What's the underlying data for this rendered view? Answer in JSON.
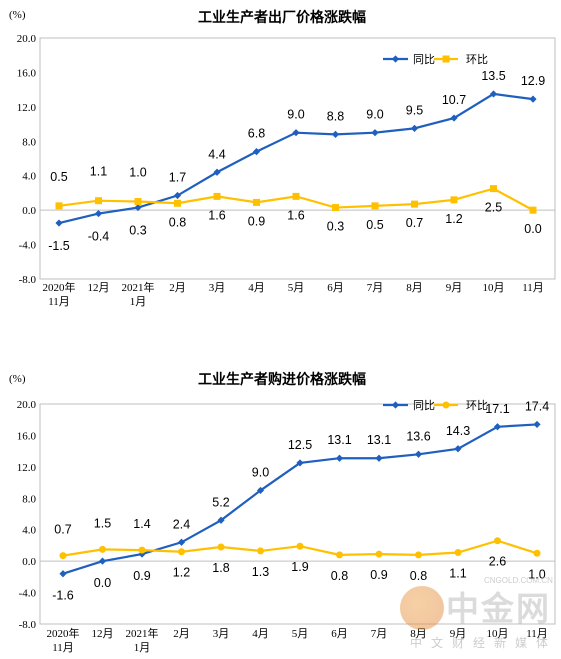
{
  "chart_data": [
    {
      "type": "line",
      "title": "工业生产者出厂价格涨跌幅",
      "unit_label": "(%)",
      "ylim": [
        -8.0,
        20.0
      ],
      "yticks": [
        "20.0",
        "16.0",
        "12.0",
        "8.0",
        "4.0",
        "0.0",
        "-4.0",
        "-8.0"
      ],
      "categories": [
        [
          "2020年",
          "11月"
        ],
        [
          "12月"
        ],
        [
          "2021年",
          "1月"
        ],
        [
          "2月"
        ],
        [
          "3月"
        ],
        [
          "4月"
        ],
        [
          "5月"
        ],
        [
          "6月"
        ],
        [
          "7月"
        ],
        [
          "8月"
        ],
        [
          "9月"
        ],
        [
          "10月"
        ],
        [
          "11月"
        ]
      ],
      "legend_position": "top-right",
      "series": [
        {
          "name": "同比",
          "color": "#1f5fbf",
          "marker": "diamond",
          "values": [
            -1.5,
            -0.4,
            0.3,
            1.7,
            4.4,
            6.8,
            9.0,
            8.8,
            9.0,
            9.5,
            10.7,
            13.5,
            12.9
          ],
          "labels": [
            "-1.5",
            "-0.4",
            "0.3",
            "1.7",
            "4.4",
            "6.8",
            "9.0",
            "8.8",
            "9.0",
            "9.5",
            "10.7",
            "13.5",
            "12.9"
          ]
        },
        {
          "name": "环比",
          "color": "#ffc000",
          "marker": "square",
          "values": [
            0.5,
            1.1,
            1.0,
            0.8,
            1.6,
            0.9,
            1.6,
            0.3,
            0.5,
            0.7,
            1.2,
            2.5,
            0.0
          ],
          "labels": [
            "0.5",
            "1.1",
            "1.0",
            "0.8",
            "1.6",
            "0.9",
            "1.6",
            "0.3",
            "0.5",
            "0.7",
            "1.2",
            "2.5",
            "0.0"
          ]
        }
      ]
    },
    {
      "type": "line",
      "title": "工业生产者购进价格涨跌幅",
      "unit_label": "(%)",
      "ylim": [
        -8.0,
        20.0
      ],
      "yticks": [
        "20.0",
        "16.0",
        "12.0",
        "8.0",
        "4.0",
        "0.0",
        "-4.0",
        "-8.0"
      ],
      "categories": [
        [
          "2020年",
          "11月"
        ],
        [
          "12月"
        ],
        [
          "2021年",
          "1月"
        ],
        [
          "2月"
        ],
        [
          "3月"
        ],
        [
          "4月"
        ],
        [
          "5月"
        ],
        [
          "6月"
        ],
        [
          "7月"
        ],
        [
          "8月"
        ],
        [
          "9月"
        ],
        [
          "10月"
        ],
        [
          "11月"
        ]
      ],
      "legend_position": "top-right",
      "series": [
        {
          "name": "同比",
          "color": "#1f5fbf",
          "marker": "diamond",
          "values": [
            -1.6,
            0.0,
            0.9,
            2.4,
            5.2,
            9.0,
            12.5,
            13.1,
            13.1,
            13.6,
            14.3,
            17.1,
            17.4
          ],
          "labels": [
            "-1.6",
            "0.0",
            "0.9",
            "2.4",
            "5.2",
            "9.0",
            "12.5",
            "13.1",
            "13.1",
            "13.6",
            "14.3",
            "17.1",
            "17.4"
          ]
        },
        {
          "name": "环比",
          "color": "#ffc000",
          "marker": "circle",
          "values": [
            0.7,
            1.5,
            1.4,
            1.2,
            1.8,
            1.3,
            1.9,
            0.8,
            0.9,
            0.8,
            1.1,
            2.6,
            1.0
          ],
          "labels": [
            "0.7",
            "1.5",
            "1.4",
            "1.2",
            "1.8",
            "1.3",
            "1.9",
            "0.8",
            "0.9",
            "0.8",
            "1.1",
            "2.6",
            "1.0"
          ]
        }
      ]
    }
  ],
  "watermark": {
    "name": "中金网",
    "url": "CNGOLD.COM.CN",
    "tagline": "中文财经新媒体"
  }
}
